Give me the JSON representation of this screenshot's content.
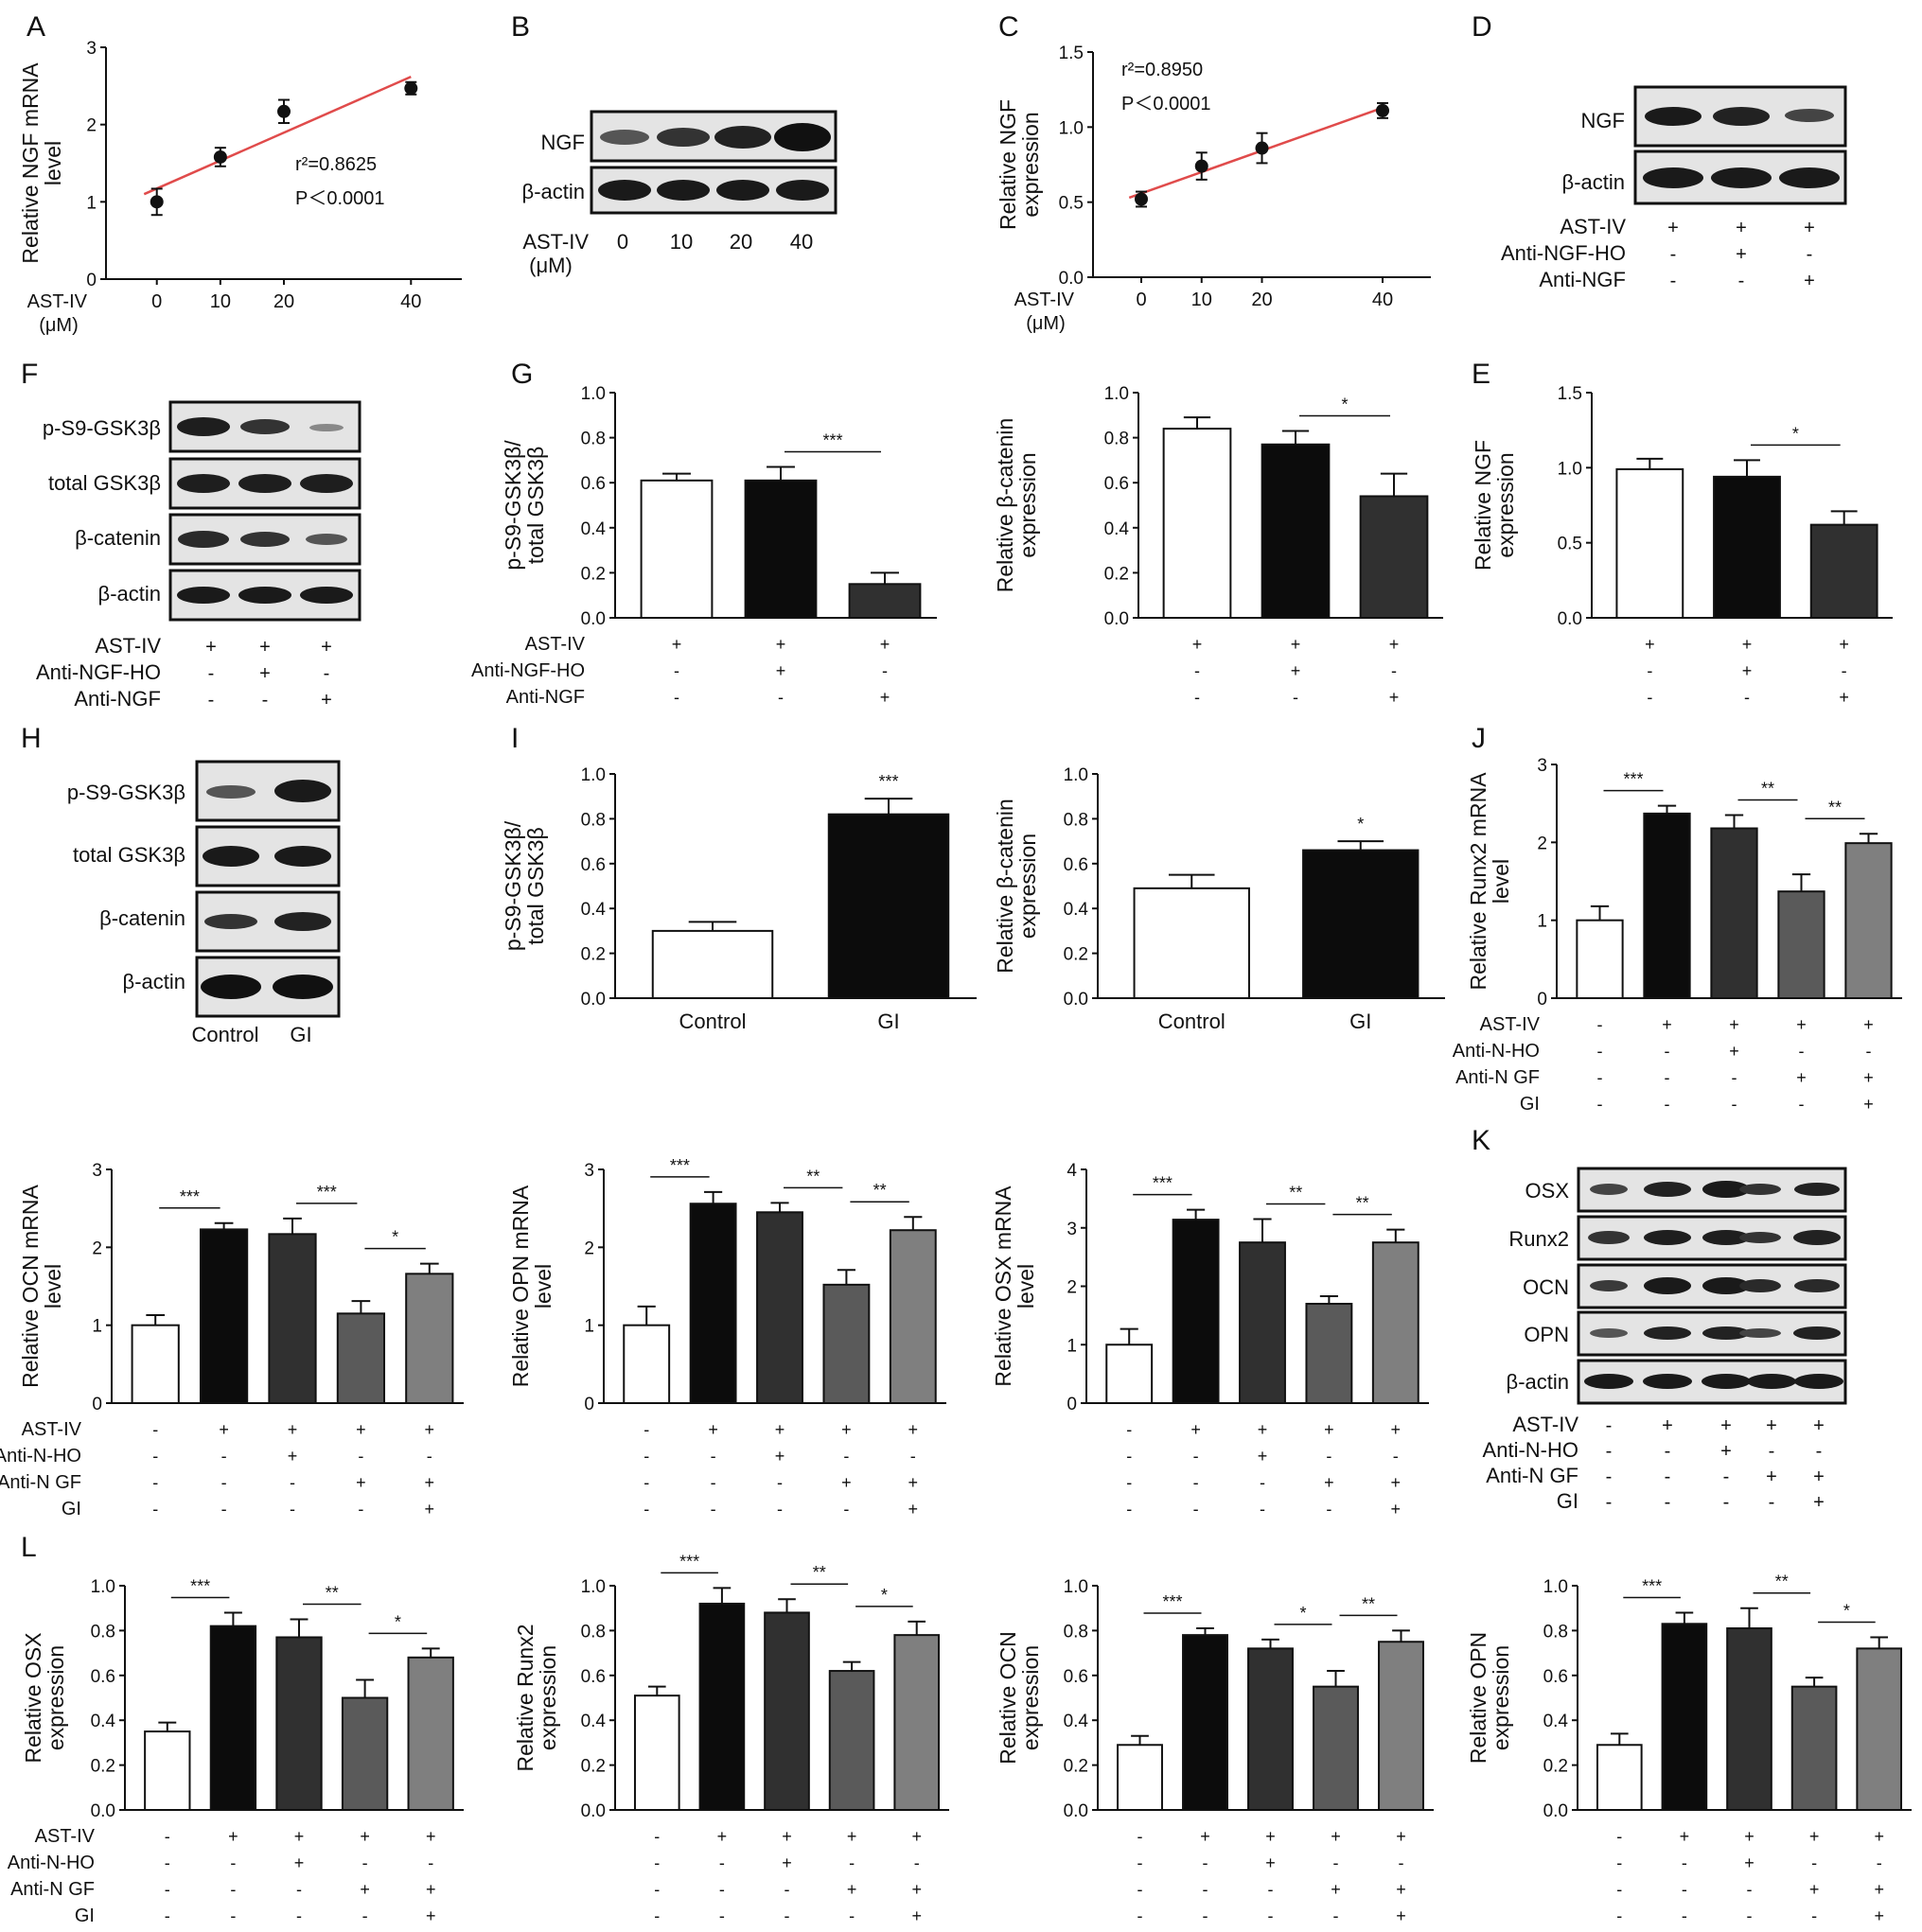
{
  "panel_letters": {
    "A": "A",
    "B": "B",
    "C": "C",
    "D": "D",
    "E": "E",
    "F": "F",
    "G": "G",
    "H": "H",
    "I": "I",
    "J": "J",
    "K": "K",
    "L": "L"
  },
  "colors": {
    "c0": "#ffffff",
    "c1": "#0c0c0c",
    "c2": "#303030",
    "c3": "#5a5a5a",
    "c4": "#7f7f7f",
    "fit": "#e04b4b"
  },
  "chart_data": [
    {
      "id": "A",
      "type": "scatter",
      "ylabel": "Relative NGF mRNA level",
      "xlabel": "AST-IV (μM)",
      "x": [
        0,
        10,
        20,
        40
      ],
      "y": [
        1.0,
        1.58,
        2.17,
        2.47
      ],
      "err": [
        0.17,
        0.12,
        0.15,
        0.08
      ],
      "ylim": [
        0,
        3
      ],
      "yticks": [
        0,
        1,
        2,
        3
      ],
      "xticks": [
        0,
        10,
        20,
        40
      ],
      "r2": "r²=0.8625",
      "p": "P＜0.0001",
      "fit": true
    },
    {
      "id": "C",
      "type": "scatter",
      "ylabel": "Relative NGF expression",
      "xlabel": "AST-IV (μM)",
      "x": [
        0,
        10,
        20,
        40
      ],
      "y": [
        0.52,
        0.74,
        0.86,
        1.11
      ],
      "err": [
        0.05,
        0.09,
        0.1,
        0.05
      ],
      "ylim": [
        0,
        1.5
      ],
      "yticks": [
        "0.0",
        "0.5",
        "1.0",
        "1.5"
      ],
      "xticks": [
        0,
        10,
        20,
        40
      ],
      "r2": "r²=0.8950",
      "p": "P＜0.0001",
      "fit": true
    },
    {
      "id": "G1",
      "type": "bar",
      "ylabel": "p-S9-GSK3β/ total GSK3β",
      "values": [
        0.61,
        0.61,
        0.15
      ],
      "err": [
        0.03,
        0.06,
        0.05
      ],
      "ylim": [
        0,
        1
      ],
      "yticks": [
        "0.0",
        "0.2",
        "0.4",
        "0.6",
        "0.8",
        "1.0"
      ],
      "colors": [
        "c0",
        "c1",
        "c2"
      ],
      "sig": [
        {
          "from": 1,
          "to": 2,
          "label": "***"
        }
      ]
    },
    {
      "id": "G2",
      "type": "bar",
      "ylabel": "Relative β-catenin expression",
      "values": [
        0.84,
        0.77,
        0.54
      ],
      "err": [
        0.05,
        0.06,
        0.1
      ],
      "ylim": [
        0,
        1
      ],
      "yticks": [
        "0.0",
        "0.2",
        "0.4",
        "0.6",
        "0.8",
        "1.0"
      ],
      "colors": [
        "c0",
        "c1",
        "c2"
      ],
      "sig": [
        {
          "from": 1,
          "to": 2,
          "label": "*"
        }
      ]
    },
    {
      "id": "E",
      "type": "bar",
      "ylabel": "Relative NGF expression",
      "values": [
        0.99,
        0.94,
        0.62
      ],
      "err": [
        0.07,
        0.11,
        0.09
      ],
      "ylim": [
        0,
        1.5
      ],
      "yticks": [
        "0.0",
        "0.5",
        "1.0",
        "1.5"
      ],
      "colors": [
        "c0",
        "c1",
        "c2"
      ],
      "sig": [
        {
          "from": 1,
          "to": 2,
          "label": "*"
        }
      ]
    },
    {
      "id": "I1",
      "type": "bar",
      "ylabel": "p-S9-GSK3β/ total GSK3β",
      "categories": [
        "Control",
        "GI"
      ],
      "values": [
        0.3,
        0.82
      ],
      "err": [
        0.04,
        0.07
      ],
      "ylim": [
        0,
        1
      ],
      "yticks": [
        "0.0",
        "0.2",
        "0.4",
        "0.6",
        "0.8",
        "1.0"
      ],
      "colors": [
        "c0",
        "c1"
      ],
      "sig": [
        {
          "single": 1,
          "label": "***"
        }
      ]
    },
    {
      "id": "I2",
      "type": "bar",
      "ylabel": "Relative β-catenin expression",
      "categories": [
        "Control",
        "GI"
      ],
      "values": [
        0.49,
        0.66
      ],
      "err": [
        0.06,
        0.04
      ],
      "ylim": [
        0,
        1
      ],
      "yticks": [
        "0.0",
        "0.2",
        "0.4",
        "0.6",
        "0.8",
        "1.0"
      ],
      "colors": [
        "c0",
        "c1"
      ],
      "sig": [
        {
          "single": 1,
          "label": "*"
        }
      ]
    },
    {
      "id": "J",
      "type": "bar",
      "ylabel": "Relative Runx2 mRNA level",
      "values": [
        1.0,
        2.37,
        2.18,
        1.37,
        1.99
      ],
      "err": [
        0.18,
        0.1,
        0.17,
        0.22,
        0.12
      ],
      "ylim": [
        0,
        3
      ],
      "yticks": [
        0,
        1,
        2,
        3
      ],
      "colors": [
        "c0",
        "c1",
        "c2",
        "c3",
        "c4"
      ],
      "sig": [
        {
          "from": 0,
          "to": 1,
          "label": "***"
        },
        {
          "from": 2,
          "to": 3,
          "label": "**"
        },
        {
          "from": 3,
          "to": 4,
          "label": "**"
        }
      ]
    },
    {
      "id": "M1",
      "type": "bar",
      "ylabel": "Relative OCN mRNA level",
      "values": [
        1.0,
        2.23,
        2.17,
        1.15,
        1.66
      ],
      "err": [
        0.13,
        0.08,
        0.2,
        0.16,
        0.13
      ],
      "ylim": [
        0,
        3
      ],
      "yticks": [
        0,
        1,
        2,
        3
      ],
      "colors": [
        "c0",
        "c1",
        "c2",
        "c3",
        "c4"
      ],
      "sig": [
        {
          "from": 0,
          "to": 1,
          "label": "***"
        },
        {
          "from": 2,
          "to": 3,
          "label": "***"
        },
        {
          "from": 3,
          "to": 4,
          "label": "*"
        }
      ]
    },
    {
      "id": "M2",
      "type": "bar",
      "ylabel": "Relative OPN mRNA level",
      "values": [
        1.0,
        2.56,
        2.45,
        1.52,
        2.22
      ],
      "err": [
        0.24,
        0.15,
        0.12,
        0.19,
        0.17
      ],
      "ylim": [
        0,
        3
      ],
      "yticks": [
        0,
        1,
        2,
        3
      ],
      "colors": [
        "c0",
        "c1",
        "c2",
        "c3",
        "c4"
      ],
      "sig": [
        {
          "from": 0,
          "to": 1,
          "label": "***"
        },
        {
          "from": 2,
          "to": 3,
          "label": "**"
        },
        {
          "from": 3,
          "to": 4,
          "label": "**"
        }
      ]
    },
    {
      "id": "M3",
      "type": "bar",
      "ylabel": "Relative OSX mRNA level",
      "values": [
        1.0,
        3.14,
        2.75,
        1.7,
        2.75
      ],
      "err": [
        0.27,
        0.17,
        0.4,
        0.13,
        0.22
      ],
      "ylim": [
        0,
        4
      ],
      "yticks": [
        0,
        1,
        2,
        3,
        4
      ],
      "colors": [
        "c0",
        "c1",
        "c2",
        "c3",
        "c4"
      ],
      "sig": [
        {
          "from": 0,
          "to": 1,
          "label": "***"
        },
        {
          "from": 2,
          "to": 3,
          "label": "**"
        },
        {
          "from": 3,
          "to": 4,
          "label": "**"
        }
      ]
    },
    {
      "id": "L1",
      "type": "bar",
      "ylabel": "Relative OSX expression",
      "values": [
        0.35,
        0.82,
        0.77,
        0.5,
        0.68
      ],
      "err": [
        0.04,
        0.06,
        0.08,
        0.08,
        0.04
      ],
      "ylim": [
        0,
        1
      ],
      "yticks": [
        "0.0",
        "0.2",
        "0.4",
        "0.6",
        "0.8",
        "1.0"
      ],
      "colors": [
        "c0",
        "c1",
        "c2",
        "c3",
        "c4"
      ],
      "sig": [
        {
          "from": 0,
          "to": 1,
          "label": "***"
        },
        {
          "from": 2,
          "to": 3,
          "label": "**"
        },
        {
          "from": 3,
          "to": 4,
          "label": "*"
        }
      ]
    },
    {
      "id": "L2",
      "type": "bar",
      "ylabel": "Relative Runx2 expression",
      "values": [
        0.51,
        0.92,
        0.88,
        0.62,
        0.78
      ],
      "err": [
        0.04,
        0.07,
        0.06,
        0.04,
        0.06
      ],
      "ylim": [
        0,
        1
      ],
      "yticks": [
        "0.0",
        "0.2",
        "0.4",
        "0.6",
        "0.8",
        "1.0"
      ],
      "colors": [
        "c0",
        "c1",
        "c2",
        "c3",
        "c4"
      ],
      "sig": [
        {
          "from": 0,
          "to": 1,
          "label": "***"
        },
        {
          "from": 2,
          "to": 3,
          "label": "**"
        },
        {
          "from": 3,
          "to": 4,
          "label": "*"
        }
      ]
    },
    {
      "id": "L3",
      "type": "bar",
      "ylabel": "Relative OCN expression",
      "values": [
        0.29,
        0.78,
        0.72,
        0.55,
        0.75
      ],
      "err": [
        0.04,
        0.03,
        0.04,
        0.07,
        0.05
      ],
      "ylim": [
        0,
        1
      ],
      "yticks": [
        "0.0",
        "0.2",
        "0.4",
        "0.6",
        "0.8",
        "1.0"
      ],
      "colors": [
        "c0",
        "c1",
        "c2",
        "c3",
        "c4"
      ],
      "sig": [
        {
          "from": 0,
          "to": 1,
          "label": "***"
        },
        {
          "from": 2,
          "to": 3,
          "label": "*"
        },
        {
          "from": 3,
          "to": 4,
          "label": "**"
        }
      ]
    },
    {
      "id": "L4",
      "type": "bar",
      "ylabel": "Relative OPN expression",
      "values": [
        0.29,
        0.83,
        0.81,
        0.55,
        0.72
      ],
      "err": [
        0.05,
        0.05,
        0.09,
        0.04,
        0.05
      ],
      "ylim": [
        0,
        1
      ],
      "yticks": [
        "0.0",
        "0.2",
        "0.4",
        "0.6",
        "0.8",
        "1.0"
      ],
      "colors": [
        "c0",
        "c1",
        "c2",
        "c3",
        "c4"
      ],
      "sig": [
        {
          "from": 0,
          "to": 1,
          "label": "***"
        },
        {
          "from": 2,
          "to": 3,
          "label": "**"
        },
        {
          "from": 3,
          "to": 4,
          "label": "*"
        }
      ]
    }
  ],
  "conditions": {
    "three_labels": [
      "AST-IV",
      "Anti-NGF-HO",
      "Anti-NGF"
    ],
    "three_values": [
      [
        "+",
        "+",
        "+"
      ],
      [
        "-",
        "+",
        "-"
      ],
      [
        "-",
        "-",
        "+"
      ]
    ],
    "five_labels": [
      "AST-IV",
      "Anti-N-HO",
      "Anti-N GF",
      "GI"
    ],
    "five_values": [
      [
        "-",
        "+",
        "+",
        "+",
        "+"
      ],
      [
        "-",
        "-",
        "+",
        "-",
        "-"
      ],
      [
        "-",
        "-",
        "-",
        "+",
        "+"
      ],
      [
        "-",
        "-",
        "-",
        "-",
        "+"
      ]
    ]
  },
  "blots": {
    "B": {
      "rows": [
        "NGF",
        "β-actin"
      ],
      "x_label": "AST-IV",
      "x_unit": "(μM)",
      "lanes": [
        "0",
        "10",
        "20",
        "40"
      ]
    },
    "D": {
      "rows": [
        "NGF",
        "β-actin"
      ]
    },
    "F": {
      "rows": [
        "p-S9-GSK3β",
        "total GSK3β",
        "β-catenin",
        "β-actin"
      ]
    },
    "H": {
      "rows": [
        "p-S9-GSK3β",
        "total GSK3β",
        "β-catenin",
        "β-actin"
      ],
      "lanes": [
        "Control",
        "GI"
      ]
    },
    "K": {
      "rows": [
        "OSX",
        "Runx2",
        "OCN",
        "OPN",
        "β-actin"
      ]
    }
  }
}
